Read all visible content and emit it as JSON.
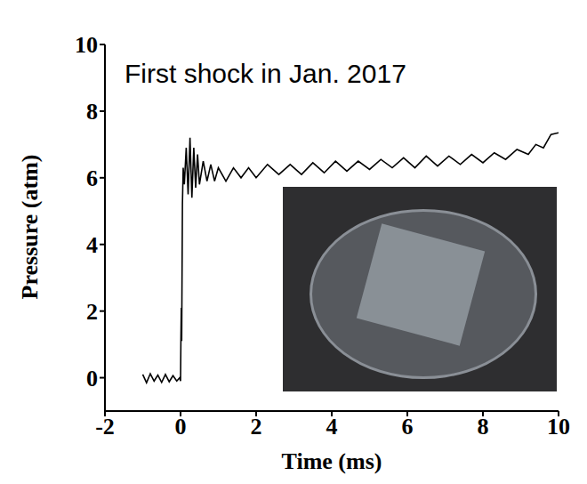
{
  "chart_data": {
    "type": "line",
    "annotation": "First shock in Jan. 2017",
    "x_label": "Time (ms)",
    "y_label": "Pressure (atm)",
    "x": [
      -1,
      -0.9,
      -0.8,
      -0.7,
      -0.6,
      -0.5,
      -0.4,
      -0.3,
      -0.2,
      -0.1,
      -0.02,
      0,
      0.01,
      0.02,
      0.03,
      0.05,
      0.07,
      0.1,
      0.15,
      0.2,
      0.25,
      0.3,
      0.35,
      0.4,
      0.45,
      0.5,
      0.6,
      0.7,
      0.8,
      0.9,
      1.0,
      1.2,
      1.4,
      1.6,
      1.8,
      2.0,
      2.3,
      2.6,
      2.9,
      3.2,
      3.5,
      3.8,
      4.1,
      4.4,
      4.7,
      5.0,
      5.3,
      5.6,
      5.9,
      6.2,
      6.5,
      6.8,
      7.1,
      7.4,
      7.7,
      8.0,
      8.3,
      8.6,
      8.9,
      9.2,
      9.4,
      9.6,
      9.8,
      10
    ],
    "values": [
      0.1,
      -0.15,
      0.12,
      -0.1,
      0.08,
      -0.14,
      0.1,
      -0.12,
      0.06,
      -0.1,
      0.0,
      -0.1,
      1.2,
      2.1,
      1.1,
      5.2,
      6.3,
      5.8,
      6.9,
      5.5,
      7.2,
      5.4,
      6.9,
      5.7,
      6.7,
      5.8,
      6.5,
      5.9,
      6.4,
      5.9,
      6.3,
      5.9,
      6.3,
      6.0,
      6.3,
      6.0,
      6.4,
      6.1,
      6.4,
      6.1,
      6.45,
      6.15,
      6.5,
      6.2,
      6.5,
      6.25,
      6.55,
      6.3,
      6.6,
      6.3,
      6.65,
      6.35,
      6.65,
      6.4,
      6.7,
      6.45,
      6.75,
      6.55,
      6.85,
      6.7,
      7.0,
      6.9,
      7.3,
      7.35
    ],
    "color": "#000000",
    "xlim": [
      -2,
      10
    ],
    "xticks": [
      -2,
      0,
      2,
      4,
      6,
      8,
      10
    ],
    "ylim": [
      -1,
      10
    ],
    "yticks": [
      0,
      2,
      4,
      6,
      8,
      10
    ],
    "grid": false
  }
}
